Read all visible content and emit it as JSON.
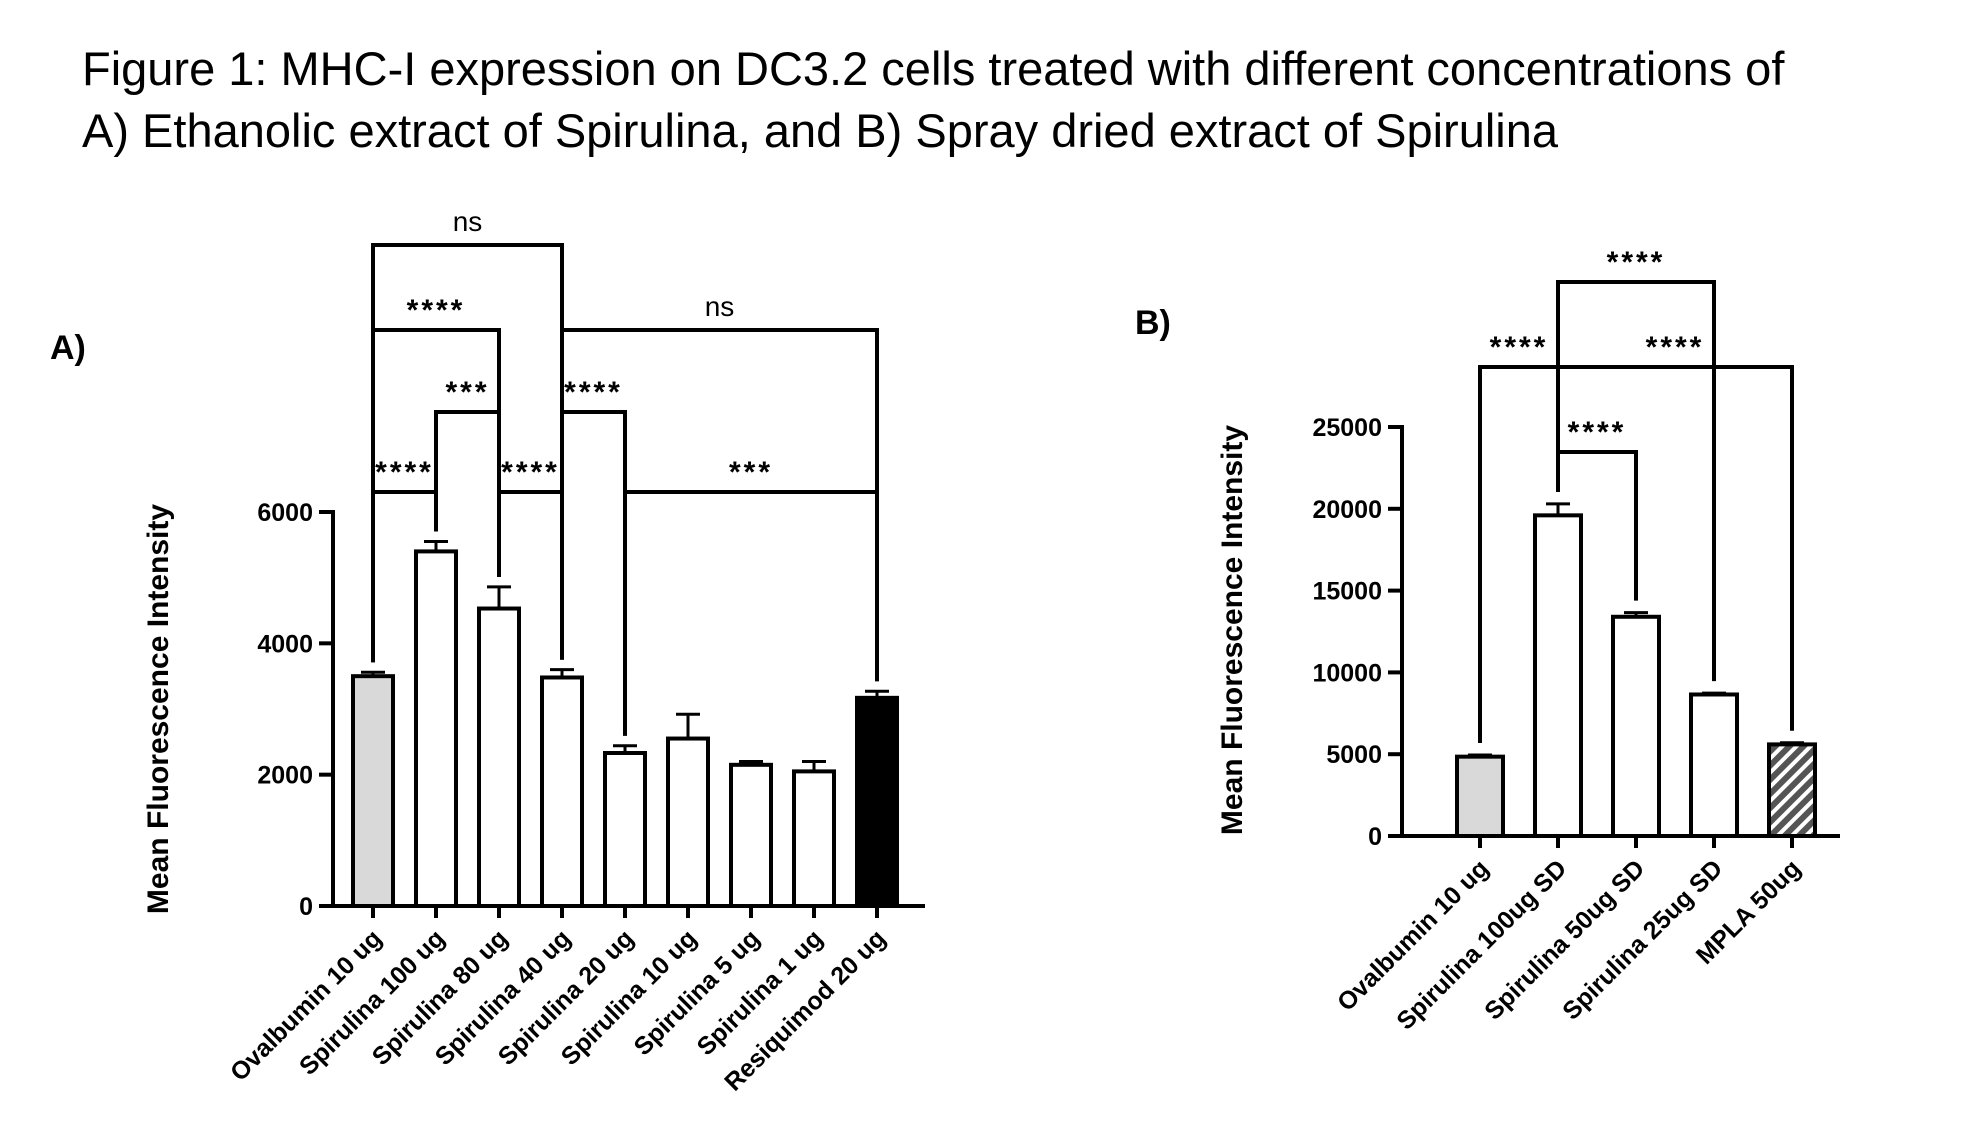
{
  "title": {
    "line1": "Figure 1: MHC-I expression on DC3.2 cells treated with different concentrations of",
    "line2": "A) Ethanolic extract of Spirulina, and B) Spray dried extract of Spirulina"
  },
  "colors": {
    "light_gray": "#d9d9d9",
    "white": "#ffffff",
    "black": "#000000",
    "dark_hatch": "#555555"
  },
  "chart_data": [
    {
      "panel": "A)",
      "type": "bar",
      "ylabel": "Mean Fluorescence Intensity",
      "ylim": [
        0,
        6000
      ],
      "yticks": [
        "0",
        "2000",
        "4000",
        "6000"
      ],
      "categories": [
        "Ovalbumin 10 ug",
        "Spirulina 100 ug",
        "Spirulina 80 ug",
        "Spirulina 40 ug",
        "Spirulina 20 ug",
        "Spirulina 10 ug",
        "Spirulina 5 ug",
        "Spirulina 1 ug",
        "Resiquimod 20 ug"
      ],
      "values": [
        3500,
        5400,
        4530,
        3480,
        2330,
        2550,
        2150,
        2050,
        3170
      ],
      "errors": [
        60,
        150,
        330,
        120,
        110,
        370,
        50,
        150,
        100
      ],
      "fills": [
        "light_gray",
        "white",
        "white",
        "white",
        "white",
        "white",
        "white",
        "white",
        "black"
      ],
      "comparisons": [
        {
          "from": 0,
          "to": 1,
          "label": "****"
        },
        {
          "from": 1,
          "to": 2,
          "label": "***"
        },
        {
          "from": 2,
          "to": 3,
          "label": "****"
        },
        {
          "from": 0,
          "to": 2,
          "label": "****"
        },
        {
          "from": 0,
          "to": 3,
          "label": "ns"
        },
        {
          "from": 3,
          "to": 4,
          "label": "****"
        },
        {
          "from": 3,
          "to": 8,
          "label": "ns"
        },
        {
          "from": 4,
          "to": 8,
          "label": "***"
        }
      ]
    },
    {
      "panel": "B)",
      "type": "bar",
      "ylabel": "Mean Fluorescence Intensity",
      "ylim": [
        0,
        25000
      ],
      "yticks": [
        "0",
        "5000",
        "10000",
        "15000",
        "20000",
        "25000"
      ],
      "categories": [
        "Ovalbumin 10 ug",
        "Spirulina 100ug SD",
        "Spirulina 50ug SD",
        "Spirulina 25ug SD",
        "MPLA 50ug"
      ],
      "values": [
        4850,
        19600,
        13400,
        8650,
        5600
      ],
      "errors": [
        100,
        700,
        250,
        80,
        100
      ],
      "fills": [
        "light_gray",
        "white",
        "white",
        "white",
        "hatched"
      ],
      "comparisons": [
        {
          "from": 1,
          "to": 2,
          "label": "****"
        },
        {
          "from": 0,
          "to": 1,
          "label": "****"
        },
        {
          "from": 1,
          "to": 4,
          "label": "****"
        },
        {
          "from": 1,
          "to": 3,
          "label": "****"
        }
      ]
    }
  ]
}
